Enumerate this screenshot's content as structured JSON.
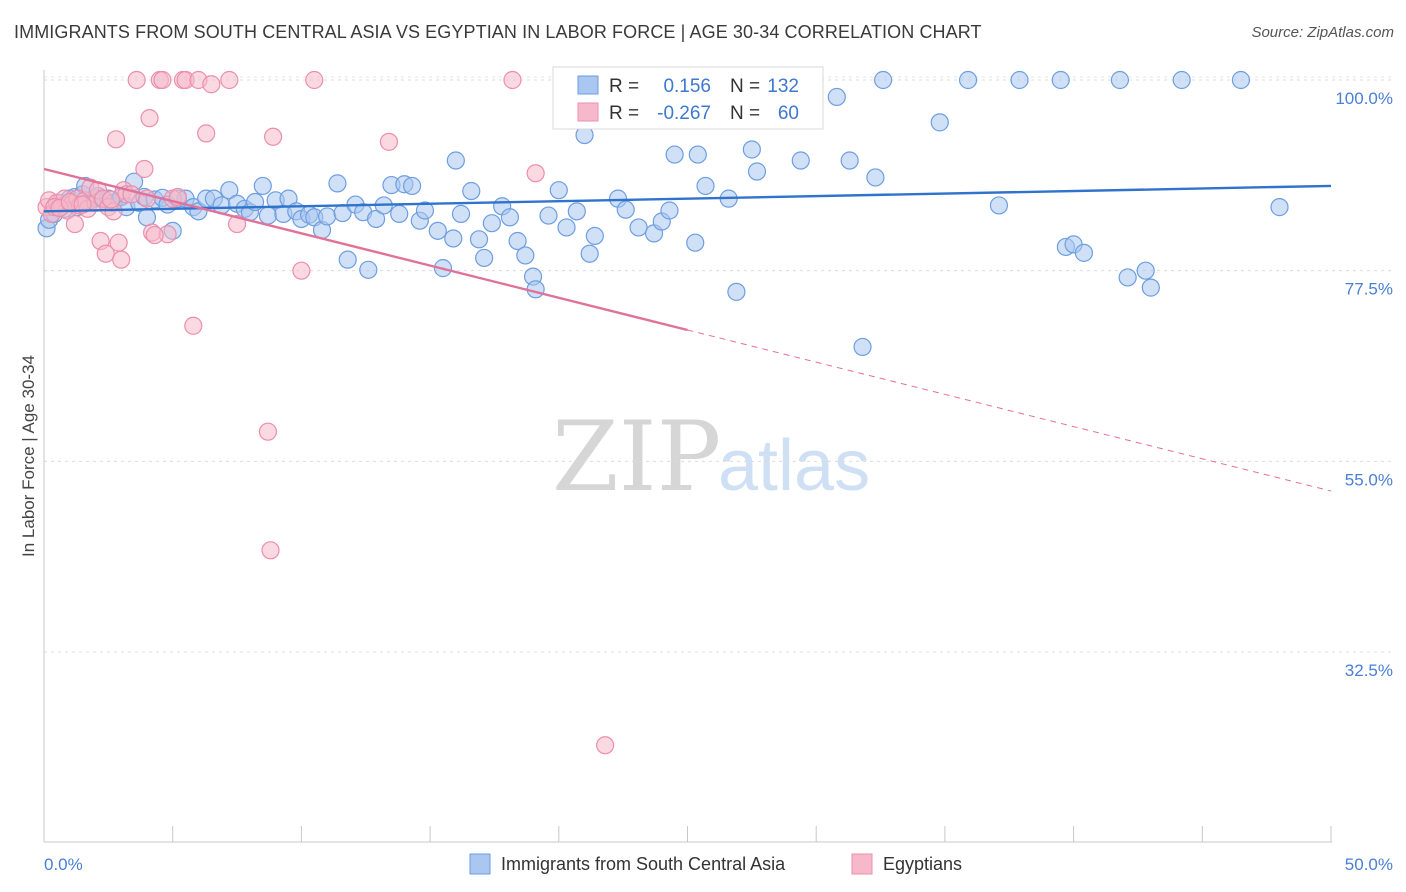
{
  "header": {
    "title": "IMMIGRANTS FROM SOUTH CENTRAL ASIA VS EGYPTIAN IN LABOR FORCE | AGE 30-34 CORRELATION CHART",
    "source": "Source: ZipAtlas.com"
  },
  "watermark": {
    "zip": "ZIP",
    "atlas": "atlas"
  },
  "stats_box": {
    "rows": [
      {
        "r_label": "R =",
        "r_value": "0.156",
        "n_label": "N =",
        "n_value": "132"
      },
      {
        "r_label": "R =",
        "r_value": "-0.267",
        "n_label": "N =",
        "n_value": "60"
      }
    ]
  },
  "chart_data": {
    "type": "scatter",
    "title": "IMMIGRANTS FROM SOUTH CENTRAL ASIA VS EGYPTIAN IN LABOR FORCE | AGE 30-34 CORRELATION CHART",
    "xlabel": "",
    "ylabel": "In Labor Force | Age 30-34",
    "xlim": [
      0,
      50
    ],
    "ylim": [
      20,
      101
    ],
    "x_tick_labels": [
      "0.0%",
      "50.0%"
    ],
    "y_ticks": [
      100.0,
      77.5,
      55.0,
      32.5
    ],
    "y_tick_labels": [
      "100.0%",
      "77.5%",
      "55.0%",
      "32.5%"
    ],
    "grid": true,
    "legend_position": "bottom-center",
    "colors": {
      "blue_fill": "#a9c7f0",
      "blue_stroke": "#6d9ee0",
      "blue_line": "#2f73cc",
      "pink_fill": "#f6b9cb",
      "pink_stroke": "#ec8eab",
      "pink_line": "#e0729a",
      "tick_text": "#4a7fd4"
    },
    "series": [
      {
        "name": "Immigrants from South Central Asia",
        "color": "#a9c7f0",
        "trend": {
          "x": [
            0,
            50
          ],
          "y": [
            84.5,
            87.5
          ],
          "style": "solid"
        },
        "points": [
          [
            0.1,
            82.5
          ],
          [
            0.2,
            83.5
          ],
          [
            0.4,
            84.2
          ],
          [
            0.5,
            85
          ],
          [
            0.6,
            85.5
          ],
          [
            0.8,
            84.8
          ],
          [
            1.0,
            86
          ],
          [
            1.2,
            86.2
          ],
          [
            1.3,
            85
          ],
          [
            1.5,
            86.5
          ],
          [
            1.6,
            87.5
          ],
          [
            1.8,
            85.8
          ],
          [
            2.0,
            86
          ],
          [
            2.1,
            86.3
          ],
          [
            2.3,
            85.9
          ],
          [
            2.5,
            86
          ],
          [
            2.7,
            85.5
          ],
          [
            3.0,
            86.2
          ],
          [
            3.2,
            85
          ],
          [
            3.5,
            88
          ],
          [
            3.7,
            85.5
          ],
          [
            3.9,
            86.2
          ],
          [
            4.0,
            83.8
          ],
          [
            4.3,
            85.9
          ],
          [
            4.6,
            86.1
          ],
          [
            4.8,
            85.3
          ],
          [
            5.0,
            82.2
          ],
          [
            5.2,
            86
          ],
          [
            5.5,
            86
          ],
          [
            5.8,
            85
          ],
          [
            6.0,
            84.5
          ],
          [
            6.3,
            86
          ],
          [
            6.6,
            86
          ],
          [
            6.9,
            85.2
          ],
          [
            7.2,
            87
          ],
          [
            7.5,
            85.4
          ],
          [
            7.8,
            84.8
          ],
          [
            8.0,
            84.4
          ],
          [
            8.2,
            85.6
          ],
          [
            8.5,
            87.5
          ],
          [
            8.7,
            84
          ],
          [
            9.0,
            85.8
          ],
          [
            9.3,
            84.2
          ],
          [
            9.5,
            86
          ],
          [
            9.8,
            84.5
          ],
          [
            10.0,
            83.6
          ],
          [
            10.3,
            84.1
          ],
          [
            10.5,
            83.8
          ],
          [
            10.8,
            82.3
          ],
          [
            11.0,
            83.9
          ],
          [
            11.4,
            87.8
          ],
          [
            11.6,
            84.3
          ],
          [
            11.8,
            78.8
          ],
          [
            12.1,
            85.3
          ],
          [
            12.4,
            84.4
          ],
          [
            12.6,
            77.6
          ],
          [
            12.9,
            83.6
          ],
          [
            13.2,
            85.2
          ],
          [
            13.5,
            87.6
          ],
          [
            13.8,
            84.2
          ],
          [
            14.0,
            87.7
          ],
          [
            14.3,
            87.5
          ],
          [
            14.6,
            83.4
          ],
          [
            14.8,
            84.6
          ],
          [
            15.3,
            82.2
          ],
          [
            15.5,
            77.8
          ],
          [
            15.9,
            81.3
          ],
          [
            16.0,
            90.5
          ],
          [
            16.2,
            84.2
          ],
          [
            16.6,
            86.9
          ],
          [
            16.9,
            81.2
          ],
          [
            17.1,
            79
          ],
          [
            17.4,
            83.1
          ],
          [
            17.8,
            85.1
          ],
          [
            18.1,
            83.8
          ],
          [
            18.4,
            81
          ],
          [
            18.7,
            79.3
          ],
          [
            19.0,
            76.8
          ],
          [
            19.1,
            75.3
          ],
          [
            19.6,
            84
          ],
          [
            20.0,
            87
          ],
          [
            20.3,
            82.6
          ],
          [
            20.7,
            84.5
          ],
          [
            21.0,
            93.5
          ],
          [
            21.2,
            79.5
          ],
          [
            21.4,
            81.6
          ],
          [
            22.3,
            86
          ],
          [
            22.6,
            84.7
          ],
          [
            23.1,
            82.6
          ],
          [
            23.7,
            81.9
          ],
          [
            24.0,
            83.3
          ],
          [
            24.3,
            84.6
          ],
          [
            25.3,
            80.8
          ],
          [
            24.5,
            91.2
          ],
          [
            25.4,
            91.2
          ],
          [
            25.7,
            87.5
          ],
          [
            26.6,
            86
          ],
          [
            26.9,
            75
          ],
          [
            27.5,
            91.8
          ],
          [
            27.7,
            89.2
          ],
          [
            29.4,
            90.5
          ],
          [
            30.8,
            98
          ],
          [
            31.3,
            90.5
          ],
          [
            31.8,
            68.5
          ],
          [
            32.3,
            88.5
          ],
          [
            32.6,
            100
          ],
          [
            34.8,
            95
          ],
          [
            35.9,
            100
          ],
          [
            37.1,
            85.2
          ],
          [
            37.9,
            100
          ],
          [
            39.5,
            100
          ],
          [
            39.7,
            80.3
          ],
          [
            40.0,
            80.6
          ],
          [
            40.4,
            79.6
          ],
          [
            41.8,
            100
          ],
          [
            42.1,
            76.7
          ],
          [
            42.8,
            77.5
          ],
          [
            43.0,
            75.5
          ],
          [
            44.2,
            100
          ],
          [
            46.5,
            100
          ],
          [
            48.0,
            85
          ]
        ]
      },
      {
        "name": "Egyptians",
        "color": "#f6b9cb",
        "trend": {
          "x": [
            0,
            25
          ],
          "y": [
            89.5,
            70.5
          ],
          "style": "solid",
          "extension": {
            "x": [
              25,
              50
            ],
            "y": [
              70.5,
              51.5
            ],
            "style": "dashed"
          }
        },
        "points": [
          [
            0.1,
            85
          ],
          [
            0.2,
            85.8
          ],
          [
            0.3,
            84.2
          ],
          [
            0.5,
            85.5
          ],
          [
            0.7,
            85.1
          ],
          [
            0.8,
            86
          ],
          [
            0.9,
            84.6
          ],
          [
            1.1,
            85.4
          ],
          [
            1.2,
            83
          ],
          [
            1.3,
            86
          ],
          [
            1.4,
            85.2
          ],
          [
            1.6,
            85.8
          ],
          [
            1.7,
            84.8
          ],
          [
            1.8,
            87.3
          ],
          [
            2.0,
            85.5
          ],
          [
            2.1,
            87
          ],
          [
            2.2,
            81
          ],
          [
            2.3,
            86
          ],
          [
            2.4,
            79.5
          ],
          [
            2.5,
            85
          ],
          [
            2.7,
            84.5
          ],
          [
            2.8,
            93
          ],
          [
            2.9,
            80.8
          ],
          [
            3.0,
            78.8
          ],
          [
            3.1,
            87
          ],
          [
            3.2,
            86.5
          ],
          [
            3.6,
            100
          ],
          [
            3.9,
            89.5
          ],
          [
            4.0,
            86
          ],
          [
            4.1,
            95.5
          ],
          [
            4.2,
            82
          ],
          [
            4.5,
            100
          ],
          [
            4.6,
            100
          ],
          [
            4.8,
            81.8
          ],
          [
            5.0,
            86
          ],
          [
            5.4,
            100
          ],
          [
            5.5,
            100
          ],
          [
            5.8,
            71
          ],
          [
            6.0,
            100
          ],
          [
            6.3,
            93.7
          ],
          [
            6.5,
            99.5
          ],
          [
            7.2,
            100
          ],
          [
            7.5,
            83
          ],
          [
            8.7,
            58.5
          ],
          [
            8.8,
            44.5
          ],
          [
            8.9,
            93.3
          ],
          [
            10.0,
            77.5
          ],
          [
            10.5,
            100
          ],
          [
            13.4,
            92.7
          ],
          [
            18.2,
            100
          ],
          [
            19.1,
            89
          ],
          [
            21.8,
            21.5
          ],
          [
            0.4,
            85
          ],
          [
            0.6,
            84.9
          ],
          [
            1.0,
            85.6
          ],
          [
            1.5,
            85.3
          ],
          [
            2.6,
            85.9
          ],
          [
            3.4,
            86.5
          ],
          [
            5.2,
            86.2
          ],
          [
            4.3,
            81.7
          ]
        ]
      }
    ]
  },
  "legend": {
    "items": [
      {
        "label": "Immigrants from South Central Asia"
      },
      {
        "label": "Egyptians"
      }
    ]
  }
}
